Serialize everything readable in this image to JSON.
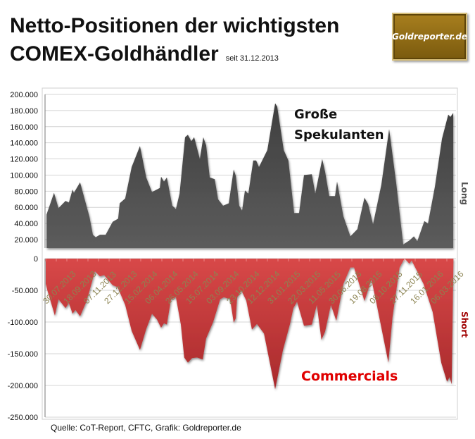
{
  "header": {
    "title_line1": "Netto-Positionen der wichtigsten",
    "title_line2": "COMEX-Goldhändler",
    "since": "seit 31.12.2013",
    "logo_text": "Goldreporter.de"
  },
  "source": "Quelle: CoT-Report, CFTC, Grafik: Goldreporter.de",
  "chart_data": [
    {
      "type": "area",
      "name": "Große Spekulanten",
      "label_line1": "Große",
      "label_line2": "Spekulanten",
      "side_label": "Long",
      "color": "#4d4d4d",
      "ylim": [
        11000,
        200000
      ],
      "yticks": [
        "200.000",
        "180.000",
        "160.000",
        "140.000",
        "120.000",
        "100.000",
        "80.000",
        "60.000",
        "40.000",
        "20.000"
      ],
      "ytick_values": [
        200000,
        180000,
        160000,
        140000,
        120000,
        100000,
        80000,
        60000,
        40000,
        20000
      ],
      "x_unit": "weeks",
      "points": [
        [
          0.3,
          51000
        ],
        [
          3.2,
          78000
        ],
        [
          4.9,
          59000
        ],
        [
          7.6,
          68000
        ],
        [
          8.9,
          66000
        ],
        [
          10.3,
          82000
        ],
        [
          10.8,
          78000
        ],
        [
          13.2,
          91000
        ],
        [
          16.8,
          48000
        ],
        [
          18.1,
          26000
        ],
        [
          19.2,
          23000
        ],
        [
          20.8,
          26000
        ],
        [
          23,
          26000
        ],
        [
          25.7,
          42000
        ],
        [
          27.8,
          46000
        ],
        [
          28.4,
          65000
        ],
        [
          30.5,
          71000
        ],
        [
          33,
          110000
        ],
        [
          36.2,
          136000
        ],
        [
          38.6,
          97000
        ],
        [
          40.8,
          79000
        ],
        [
          43.8,
          84000
        ],
        [
          44.3,
          98000
        ],
        [
          45.4,
          92000
        ],
        [
          46.5,
          97000
        ],
        [
          48.6,
          62000
        ],
        [
          50,
          58000
        ],
        [
          51.4,
          77000
        ],
        [
          53.5,
          147000
        ],
        [
          54.6,
          150000
        ],
        [
          55.9,
          142000
        ],
        [
          57,
          147000
        ],
        [
          59.2,
          120000
        ],
        [
          60.5,
          147000
        ],
        [
          61.6,
          137000
        ],
        [
          63,
          97000
        ],
        [
          64.9,
          95000
        ],
        [
          66.2,
          70000
        ],
        [
          68.1,
          62000
        ],
        [
          70.3,
          65000
        ],
        [
          72.2,
          107000
        ],
        [
          73,
          99000
        ],
        [
          74.3,
          62000
        ],
        [
          75.4,
          56000
        ],
        [
          76.5,
          81000
        ],
        [
          77.8,
          77000
        ],
        [
          79.7,
          118000
        ],
        [
          80.8,
          118000
        ],
        [
          81.9,
          110000
        ],
        [
          85.1,
          131000
        ],
        [
          88.1,
          189000
        ],
        [
          88.9,
          185000
        ],
        [
          91.4,
          131000
        ],
        [
          93.2,
          118000
        ],
        [
          95.4,
          53000
        ],
        [
          97.3,
          53000
        ],
        [
          99.2,
          100000
        ],
        [
          102.2,
          101000
        ],
        [
          103.5,
          77000
        ],
        [
          106.2,
          120000
        ],
        [
          107.3,
          104000
        ],
        [
          108.9,
          74000
        ],
        [
          111.1,
          74000
        ],
        [
          111.9,
          92000
        ],
        [
          114.3,
          49000
        ],
        [
          117,
          24000
        ],
        [
          119.7,
          33000
        ],
        [
          122.4,
          72000
        ],
        [
          123.8,
          64000
        ],
        [
          125.7,
          39000
        ],
        [
          128.9,
          88000
        ],
        [
          131.9,
          157000
        ],
        [
          134.6,
          90000
        ],
        [
          137.3,
          14000
        ],
        [
          139.7,
          19000
        ],
        [
          141.4,
          24000
        ],
        [
          142.7,
          18000
        ],
        [
          145.4,
          43000
        ],
        [
          146.8,
          40000
        ],
        [
          149.5,
          86000
        ],
        [
          152.2,
          145000
        ],
        [
          154.6,
          175000
        ],
        [
          155.4,
          172000
        ],
        [
          156.5,
          177000
        ]
      ]
    },
    {
      "type": "area",
      "name": "Commercials",
      "label": "Commercials",
      "side_label": "Short",
      "color": "#c0393b",
      "label_color": "#e00000",
      "ylim": [
        -250000,
        0
      ],
      "yticks": [
        "0",
        "-50.000",
        "-100.000",
        "-150.000",
        "-200.000",
        "-250.000"
      ],
      "ytick_values": [
        0,
        -50000,
        -100000,
        -150000,
        -200000,
        -250000
      ],
      "xticks": [
        "30.07.2013",
        "18.09.2013",
        "07.11.2013",
        "27.12.2013",
        "15.02.2014",
        "06.04.2014",
        "26.05.2014",
        "15.07.2014",
        "03.09.2014",
        "23.10.2014",
        "12.12.2014",
        "31.01.2015",
        "22.03.2015",
        "11.05.2015",
        "30.06.2015",
        "19.08.2015",
        "08.10.2015",
        "27.11.2015",
        "16.01.2016",
        "06.03.2016"
      ],
      "x_unit": "weeks",
      "points": [
        [
          0,
          -40000
        ],
        [
          0.5,
          -48000
        ],
        [
          3.5,
          -90000
        ],
        [
          4.9,
          -64000
        ],
        [
          7.6,
          -78000
        ],
        [
          8.9,
          -70000
        ],
        [
          10.3,
          -87000
        ],
        [
          11.4,
          -81000
        ],
        [
          13.2,
          -91000
        ],
        [
          15.7,
          -67000
        ],
        [
          18.9,
          -20000
        ],
        [
          20.8,
          -28000
        ],
        [
          22.4,
          -26000
        ],
        [
          25.7,
          -42000
        ],
        [
          27.6,
          -45000
        ],
        [
          30.5,
          -73000
        ],
        [
          33,
          -114000
        ],
        [
          36.2,
          -144000
        ],
        [
          38.6,
          -111000
        ],
        [
          40.8,
          -87000
        ],
        [
          42.7,
          -96000
        ],
        [
          44.3,
          -109000
        ],
        [
          45.4,
          -102000
        ],
        [
          46.5,
          -104000
        ],
        [
          48.1,
          -64000
        ],
        [
          50,
          -61000
        ],
        [
          51.9,
          -104000
        ],
        [
          53.2,
          -156000
        ],
        [
          54.6,
          -164000
        ],
        [
          56.2,
          -157000
        ],
        [
          58.1,
          -156000
        ],
        [
          60.3,
          -159000
        ],
        [
          61.6,
          -126000
        ],
        [
          64.3,
          -100000
        ],
        [
          67,
          -64000
        ],
        [
          68.4,
          -61000
        ],
        [
          70.8,
          -64000
        ],
        [
          72.2,
          -101000
        ],
        [
          73,
          -94000
        ],
        [
          73.5,
          -62000
        ],
        [
          75.1,
          -50000
        ],
        [
          77,
          -66000
        ],
        [
          79.2,
          -112000
        ],
        [
          81.1,
          -103000
        ],
        [
          83.8,
          -118000
        ],
        [
          88.1,
          -206000
        ],
        [
          91.1,
          -144000
        ],
        [
          93.8,
          -103000
        ],
        [
          95.1,
          -78000
        ],
        [
          96.5,
          -68000
        ],
        [
          99.2,
          -106000
        ],
        [
          102.2,
          -104000
        ],
        [
          104.1,
          -73000
        ],
        [
          105.9,
          -128000
        ],
        [
          107.3,
          -115000
        ],
        [
          109.5,
          -73000
        ],
        [
          111.6,
          -98000
        ],
        [
          114.3,
          -40000
        ],
        [
          117,
          -14000
        ],
        [
          118.4,
          -14000
        ],
        [
          122.4,
          -67000
        ],
        [
          125.1,
          -33000
        ],
        [
          127,
          -70000
        ],
        [
          131.6,
          -164000
        ],
        [
          133.2,
          -92000
        ],
        [
          135.9,
          -14000
        ],
        [
          137.8,
          0
        ],
        [
          139.7,
          -8000
        ],
        [
          140.5,
          -3000
        ],
        [
          142.4,
          -18000
        ],
        [
          145.1,
          -40000
        ],
        [
          148.6,
          -84000
        ],
        [
          151.9,
          -164000
        ],
        [
          154.1,
          -194000
        ],
        [
          155.1,
          -187000
        ],
        [
          155.9,
          -198000
        ],
        [
          156.6,
          0
        ]
      ]
    }
  ]
}
